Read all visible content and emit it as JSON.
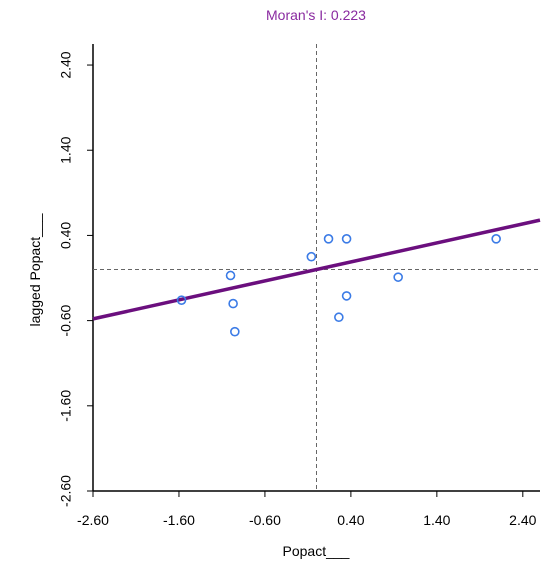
{
  "chart_data": {
    "type": "scatter",
    "title": "Moran's I: 0.223",
    "x_label": "Popact___",
    "y_label": "lagged Popact___",
    "x": [
      -1.57,
      -1.0,
      -0.97,
      -0.95,
      -0.06,
      0.14,
      0.35,
      0.35,
      0.26,
      0.95,
      2.09
    ],
    "y": [
      -0.36,
      -0.07,
      -0.4,
      -0.73,
      0.15,
      0.36,
      0.36,
      -0.31,
      -0.56,
      -0.09,
      0.36
    ],
    "color": "#3b7be6",
    "line_color": "#6b0f7e",
    "title_color": "#8a2aa0",
    "regression_slope": 0.223,
    "xlim": [
      -2.6,
      2.6
    ],
    "ylim": [
      -2.6,
      2.6
    ],
    "xticks": [
      {
        "value": -2.6,
        "label": "-2.60"
      },
      {
        "value": -1.6,
        "label": "-1.60"
      },
      {
        "value": -0.6,
        "label": "-0.60"
      },
      {
        "value": 0.4,
        "label": "0.40"
      },
      {
        "value": 1.4,
        "label": "1.40"
      },
      {
        "value": 2.4,
        "label": "2.40"
      }
    ],
    "yticks": [
      {
        "value": -2.6,
        "label": "-2.60"
      },
      {
        "value": -1.6,
        "label": "-1.60"
      },
      {
        "value": -0.6,
        "label": "-0.60"
      },
      {
        "value": 0.4,
        "label": "0.40"
      },
      {
        "value": 1.4,
        "label": "1.40"
      },
      {
        "value": 2.4,
        "label": "2.40"
      }
    ]
  }
}
